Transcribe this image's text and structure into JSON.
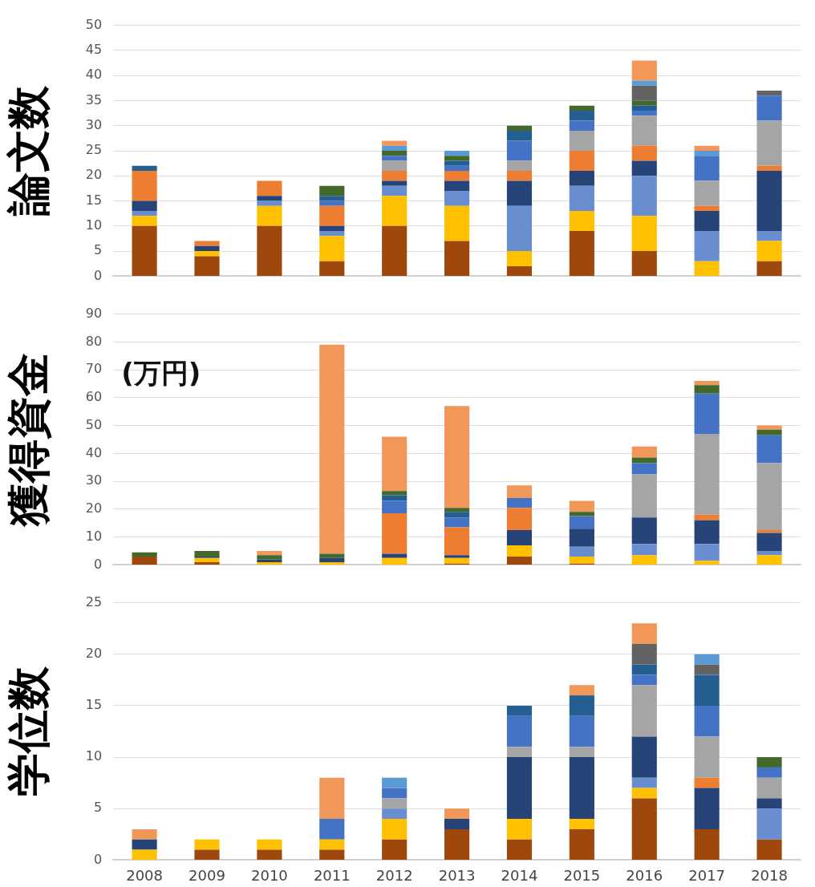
{
  "chart_data": [
    {
      "type": "bar",
      "stacked": true,
      "ylabel": "論文数",
      "tick_labels": "y",
      "grid": "y",
      "ylim": [
        0,
        50
      ],
      "yticks": [
        0,
        5,
        10,
        15,
        20,
        25,
        30,
        35,
        40,
        45,
        50
      ],
      "categories": [
        "2008",
        "2009",
        "2010",
        "2011",
        "2012",
        "2013",
        "2014",
        "2015",
        "2016",
        "2017",
        "2018"
      ],
      "series": [
        {
          "color": "#9e480e",
          "values": [
            10,
            4,
            10,
            3,
            10,
            7,
            2,
            9,
            5,
            null,
            3
          ]
        },
        {
          "color": "#ffc000",
          "values": [
            2,
            1,
            4,
            5,
            6,
            7,
            3,
            4,
            7,
            3,
            4
          ]
        },
        {
          "color": "#698ed0",
          "values": [
            1,
            null,
            1,
            1,
            2,
            3,
            9,
            5,
            8,
            6,
            2
          ]
        },
        {
          "color": "#264478",
          "values": [
            2,
            1,
            1,
            1,
            1,
            2,
            5,
            3,
            3,
            4,
            12
          ]
        },
        {
          "color": "#ed7d31",
          "values": [
            6,
            1,
            3,
            4,
            2,
            2,
            2,
            4,
            3,
            1,
            1
          ]
        },
        {
          "color": "#a5a5a5",
          "values": [
            null,
            null,
            null,
            null,
            2,
            null,
            2,
            4,
            6,
            5,
            9
          ]
        },
        {
          "color": "#4472c4",
          "values": [
            null,
            null,
            null,
            1,
            1,
            1,
            4,
            2,
            1,
            5,
            5
          ]
        },
        {
          "color": "#255e91",
          "values": [
            1,
            null,
            null,
            1,
            null,
            1,
            2,
            2,
            1,
            null,
            null
          ]
        },
        {
          "color": "#43682b",
          "values": [
            null,
            null,
            null,
            2,
            1,
            1,
            1,
            1,
            1,
            null,
            null
          ]
        },
        {
          "color": "#636363",
          "values": [
            null,
            null,
            null,
            null,
            null,
            null,
            null,
            null,
            3,
            null,
            1
          ]
        },
        {
          "color": "#5b9bd5",
          "values": [
            null,
            null,
            null,
            null,
            1,
            1,
            null,
            null,
            1,
            1,
            null
          ]
        },
        {
          "color": "#f1975a",
          "values": [
            null,
            null,
            null,
            null,
            1,
            null,
            null,
            null,
            4,
            1,
            null
          ]
        }
      ]
    },
    {
      "type": "bar",
      "stacked": true,
      "ylabel": "獲得資金",
      "tick_labels": "y",
      "grid": "y",
      "ylim": [
        0,
        90
      ],
      "yticks": [
        0,
        10,
        20,
        30,
        40,
        50,
        60,
        70,
        80,
        90
      ],
      "annotations": [
        "(万円)"
      ],
      "categories": [
        "2008",
        "2009",
        "2010",
        "2011",
        "2012",
        "2013",
        "2014",
        "2015",
        "2016",
        "2017",
        "2018"
      ],
      "series": [
        {
          "color": "#9e480e",
          "values": [
            3,
            1,
            null,
            null,
            null,
            0.5,
            3,
            0.5,
            null,
            null,
            null
          ]
        },
        {
          "color": "#ffc000",
          "values": [
            null,
            1.5,
            1,
            1,
            2.5,
            2,
            4,
            2.5,
            3.5,
            1.5,
            3.5
          ]
        },
        {
          "color": "#698ed0",
          "values": [
            null,
            null,
            null,
            null,
            null,
            null,
            null,
            3.5,
            4,
            6,
            1.5
          ]
        },
        {
          "color": "#264478",
          "values": [
            null,
            0.5,
            1,
            1.5,
            1.5,
            1,
            5.5,
            6.5,
            9.5,
            8.5,
            6.5
          ]
        },
        {
          "color": "#ed7d31",
          "values": [
            null,
            null,
            null,
            null,
            14.5,
            10,
            8,
            null,
            null,
            2,
            1
          ]
        },
        {
          "color": "#a5a5a5",
          "values": [
            null,
            null,
            null,
            null,
            null,
            null,
            null,
            null,
            15.5,
            29,
            24
          ]
        },
        {
          "color": "#4472c4",
          "values": [
            null,
            null,
            null,
            null,
            4.5,
            3.5,
            3.5,
            4.5,
            4,
            14.5,
            10
          ]
        },
        {
          "color": "#255e91",
          "values": [
            null,
            null,
            null,
            null,
            2,
            2,
            null,
            null,
            null,
            null,
            null
          ]
        },
        {
          "color": "#43682b",
          "values": [
            1.5,
            2,
            1.5,
            1.5,
            1.5,
            1.5,
            null,
            1.5,
            2,
            3,
            2
          ]
        },
        {
          "color": "#f1975a",
          "values": [
            null,
            null,
            1.5,
            75,
            19.5,
            36.5,
            4.5,
            4,
            4,
            1.5,
            1.5
          ]
        }
      ]
    },
    {
      "type": "bar",
      "stacked": true,
      "ylabel": "学位数",
      "grid": "y",
      "ylim": [
        0,
        25
      ],
      "yticks": [
        0,
        5,
        10,
        15,
        20,
        25
      ],
      "categories": [
        "2008",
        "2009",
        "2010",
        "2011",
        "2012",
        "2013",
        "2014",
        "2015",
        "2016",
        "2017",
        "2018"
      ],
      "series": [
        {
          "color": "#9e480e",
          "values": [
            null,
            1,
            1,
            1,
            2,
            3,
            2,
            3,
            6,
            3,
            2
          ]
        },
        {
          "color": "#ffc000",
          "values": [
            1,
            1,
            1,
            1,
            2,
            null,
            2,
            1,
            1,
            null,
            null
          ]
        },
        {
          "color": "#698ed0",
          "values": [
            null,
            null,
            null,
            null,
            1,
            null,
            null,
            null,
            1,
            null,
            3
          ]
        },
        {
          "color": "#264478",
          "values": [
            1,
            null,
            null,
            null,
            null,
            1,
            6,
            6,
            4,
            4,
            1
          ]
        },
        {
          "color": "#ed7d31",
          "values": [
            null,
            null,
            null,
            null,
            null,
            null,
            null,
            null,
            null,
            1,
            null
          ]
        },
        {
          "color": "#a5a5a5",
          "values": [
            null,
            null,
            null,
            null,
            1,
            null,
            1,
            1,
            5,
            4,
            2
          ]
        },
        {
          "color": "#4472c4",
          "values": [
            null,
            null,
            null,
            2,
            1,
            null,
            3,
            3,
            1,
            3,
            1
          ]
        },
        {
          "color": "#255e91",
          "values": [
            null,
            null,
            null,
            null,
            null,
            null,
            1,
            2,
            1,
            3,
            null
          ]
        },
        {
          "color": "#43682b",
          "values": [
            null,
            null,
            null,
            null,
            null,
            null,
            null,
            null,
            null,
            null,
            1
          ]
        },
        {
          "color": "#636363",
          "values": [
            null,
            null,
            null,
            null,
            null,
            null,
            null,
            null,
            2,
            1,
            null
          ]
        },
        {
          "color": "#5b9bd5",
          "values": [
            null,
            null,
            null,
            null,
            1,
            null,
            null,
            null,
            null,
            1,
            null
          ]
        },
        {
          "color": "#f1975a",
          "values": [
            1,
            null,
            null,
            4,
            null,
            1,
            null,
            1,
            2,
            null,
            null
          ]
        }
      ]
    }
  ]
}
